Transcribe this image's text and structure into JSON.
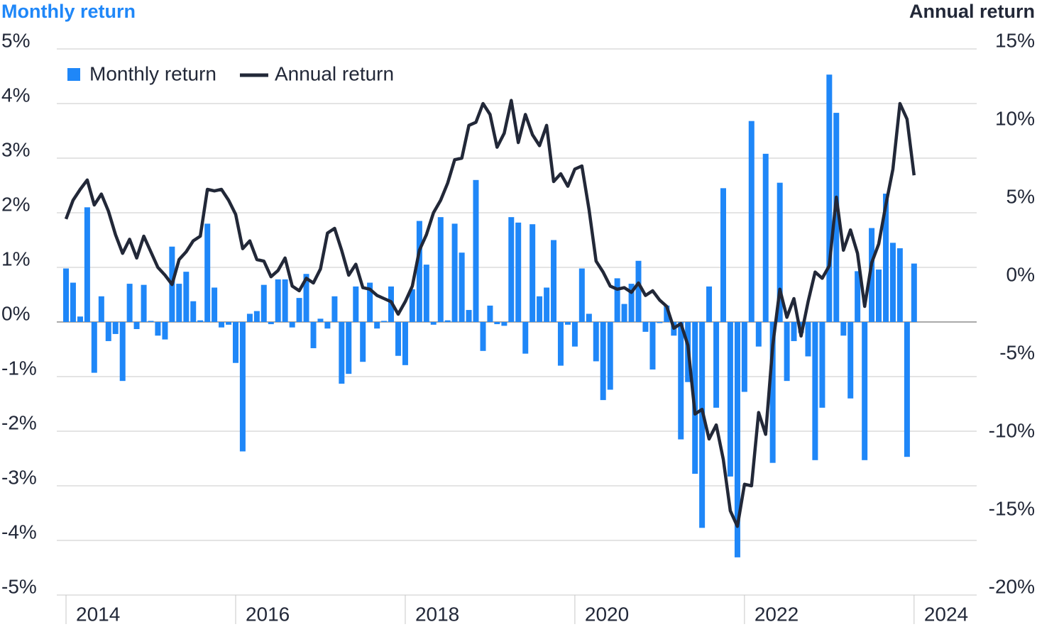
{
  "chart_data": {
    "type": "bar",
    "y_title": "Monthly return",
    "y2_title": "Annual return",
    "x": [
      2014,
      2014.083,
      2014.167,
      2014.25,
      2014.333,
      2014.417,
      2014.5,
      2014.583,
      2014.667,
      2014.75,
      2014.833,
      2014.917,
      2015,
      2015.083,
      2015.167,
      2015.25,
      2015.333,
      2015.417,
      2015.5,
      2015.583,
      2015.667,
      2015.75,
      2015.833,
      2015.917,
      2016,
      2016.083,
      2016.167,
      2016.25,
      2016.333,
      2016.417,
      2016.5,
      2016.583,
      2016.667,
      2016.75,
      2016.833,
      2016.917,
      2017,
      2017.083,
      2017.167,
      2017.25,
      2017.333,
      2017.417,
      2017.5,
      2017.583,
      2017.667,
      2017.75,
      2017.833,
      2017.917,
      2018,
      2018.083,
      2018.167,
      2018.25,
      2018.333,
      2018.417,
      2018.5,
      2018.583,
      2018.667,
      2018.75,
      2018.833,
      2018.917,
      2019,
      2019.083,
      2019.167,
      2019.25,
      2019.333,
      2019.417,
      2019.5,
      2019.583,
      2019.667,
      2019.75,
      2019.833,
      2019.917,
      2020,
      2020.083,
      2020.167,
      2020.25,
      2020.333,
      2020.417,
      2020.5,
      2020.583,
      2020.667,
      2020.75,
      2020.833,
      2020.917,
      2021,
      2021.083,
      2021.167,
      2021.25,
      2021.333,
      2021.417,
      2021.5,
      2021.583,
      2021.667,
      2021.75,
      2021.833,
      2021.917,
      2022,
      2022.083,
      2022.167,
      2022.25,
      2022.333,
      2022.417,
      2022.5,
      2022.583,
      2022.667,
      2022.75,
      2022.833,
      2022.917,
      2023,
      2023.083,
      2023.167,
      2023.25,
      2023.333,
      2023.417,
      2023.5,
      2023.583,
      2023.667,
      2023.75,
      2023.833,
      2023.917,
      2024
    ],
    "series": [
      {
        "name": "Monthly return",
        "color": "#1f87f8",
        "values": [
          0.98,
          0.72,
          0.1,
          2.1,
          -0.93,
          0.47,
          -0.35,
          -0.22,
          -1.08,
          0.7,
          -0.13,
          0.68,
          0.02,
          -0.25,
          -0.32,
          1.38,
          0.7,
          0.92,
          0.38,
          0.03,
          1.8,
          0.63,
          -0.1,
          -0.05,
          -0.75,
          -2.37,
          0.15,
          0.2,
          0.68,
          -0.04,
          0.78,
          0.78,
          -0.1,
          0.44,
          0.88,
          -0.48,
          0.06,
          -0.12,
          0.47,
          -1.13,
          -0.95,
          0.65,
          -0.73,
          0.72,
          -0.12,
          0.02,
          0.65,
          -0.62,
          -0.79,
          0.6,
          1.85,
          1.05,
          -0.05,
          1.92,
          0.03,
          1.8,
          1.27,
          0.22,
          2.6,
          -0.53,
          0.3,
          -0.04,
          -0.07,
          1.92,
          1.82,
          -0.58,
          1.79,
          0.47,
          0.63,
          1.5,
          -0.8,
          -0.05,
          -0.45,
          0.98,
          0.15,
          -0.72,
          -1.43,
          -1.24,
          0.8,
          0.33,
          0.7,
          1.12,
          -0.18,
          -0.87,
          -0.02,
          0.3,
          -0.25,
          -2.15,
          -1.1,
          -2.78,
          -3.77,
          0.65,
          -1.57,
          2.45,
          -2.83,
          -4.31,
          -1.28,
          3.68,
          -0.45,
          3.08,
          -2.58,
          2.55,
          -1.08,
          -0.35,
          -0.2,
          -0.63,
          -2.53,
          -1.57,
          4.53,
          3.83,
          -0.25,
          -1.4,
          0.93,
          -2.53,
          1.72,
          0.96,
          2.35,
          1.45,
          1.35,
          -2.47,
          1.07
        ]
      },
      {
        "name": "Annual return",
        "color": "#222838",
        "type": "line",
        "axis": "y2",
        "values": [
          4.1,
          5.3,
          6.0,
          6.6,
          5.0,
          5.7,
          4.6,
          3.1,
          1.9,
          2.8,
          1.6,
          3.0,
          2.0,
          1.0,
          0.5,
          -0.1,
          1.5,
          2.0,
          2.7,
          3.0,
          6.0,
          5.9,
          6.0,
          5.3,
          4.4,
          2.2,
          2.7,
          1.5,
          1.4,
          0.4,
          0.8,
          1.6,
          -0.2,
          -0.5,
          0.3,
          0.0,
          0.9,
          3.2,
          3.5,
          2.1,
          0.5,
          1.2,
          -0.3,
          -0.4,
          -0.8,
          -1.0,
          -1.2,
          -2.0,
          -1.2,
          -0.2,
          2.1,
          3.1,
          4.5,
          5.3,
          6.4,
          7.9,
          8.0,
          10.1,
          10.3,
          11.5,
          10.8,
          8.7,
          9.6,
          11.7,
          9.0,
          10.8,
          9.5,
          8.8,
          10.1,
          6.5,
          7.0,
          6.2,
          7.3,
          7.5,
          4.7,
          1.4,
          0.7,
          -0.2,
          -0.4,
          -0.3,
          -0.6,
          0.0,
          -0.8,
          -0.5,
          -1.1,
          -1.5,
          -2.9,
          -2.6,
          -4.0,
          -8.4,
          -8.1,
          -10.0,
          -9.1,
          -11.3,
          -14.6,
          -15.6,
          -12.9,
          -13.0,
          -8.3,
          -9.7,
          -4.0,
          -0.4,
          -2.2,
          -1.0,
          -3.4,
          -1.2,
          0.7,
          0.3,
          1.1,
          5.5,
          2.1,
          3.4,
          1.9,
          -1.5,
          1.3,
          2.5,
          5.0,
          7.3,
          11.5,
          10.5,
          6.9
        ]
      }
    ],
    "xlim": [
      2013.891,
      2024.738
    ],
    "xticks": [
      2014,
      2016,
      2018,
      2020,
      2022,
      2024
    ],
    "ylim": [
      -5,
      5
    ],
    "yticks": [
      {
        "value": -5,
        "label": "-5%"
      },
      {
        "value": -4,
        "label": "-4%"
      },
      {
        "value": -3,
        "label": "-3%"
      },
      {
        "value": -2,
        "label": "-2%"
      },
      {
        "value": -1,
        "label": "-1%"
      },
      {
        "value": 0,
        "label": "0%"
      },
      {
        "value": 1,
        "label": "1%"
      },
      {
        "value": 2,
        "label": "2%"
      },
      {
        "value": 3,
        "label": "3%"
      },
      {
        "value": 4,
        "label": "4%"
      },
      {
        "value": 5,
        "label": "5%"
      }
    ],
    "y2lim": [
      -20,
      15
    ],
    "y2ticks": [
      {
        "value": -20,
        "label": "-20%"
      },
      {
        "value": -15,
        "label": "-15%"
      },
      {
        "value": -10,
        "label": "-10%"
      },
      {
        "value": -5,
        "label": "-5%"
      },
      {
        "value": 0,
        "label": "0%"
      },
      {
        "value": 5,
        "label": "5%"
      },
      {
        "value": 10,
        "label": "10%"
      },
      {
        "value": 15,
        "label": "15%"
      }
    ],
    "grid": true,
    "legend": "top-left"
  }
}
